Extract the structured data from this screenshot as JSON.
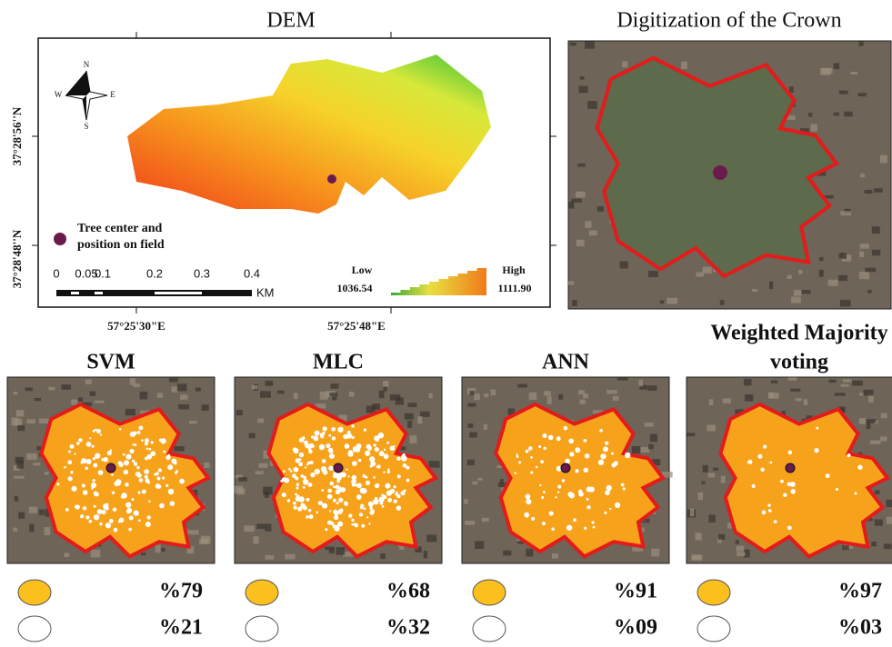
{
  "dem": {
    "title": "DEM",
    "lat_labels": [
      "37°28'56''N",
      "37°28'48''N"
    ],
    "lon_labels": [
      "57°25'30\"E",
      "57°25'48\"E"
    ],
    "compass": {
      "n": "N",
      "s": "S",
      "e": "E",
      "w": "W"
    },
    "legend_point": [
      "Tree center and",
      "position on field"
    ],
    "scale_labels": [
      "0",
      "0.05",
      "0.1",
      "0.2",
      "0.3",
      "0.4"
    ],
    "scale_unit": "KM",
    "low_label": "Low",
    "low_value": "1036.54",
    "high_label": "High",
    "high_value": "1111.90"
  },
  "crown": {
    "title": "Digitization of the Crown"
  },
  "panels": [
    {
      "title": [
        "SVM"
      ],
      "percent_crown": "%79",
      "percent_gap": "%21"
    },
    {
      "title": [
        "MLC"
      ],
      "percent_crown": "%68",
      "percent_gap": "%32"
    },
    {
      "title": [
        "ANN"
      ],
      "percent_crown": "%91",
      "percent_gap": "%09"
    },
    {
      "title": [
        "Weighted Majority",
        "voting"
      ],
      "percent_crown": "%97",
      "percent_gap": "%03"
    }
  ]
}
